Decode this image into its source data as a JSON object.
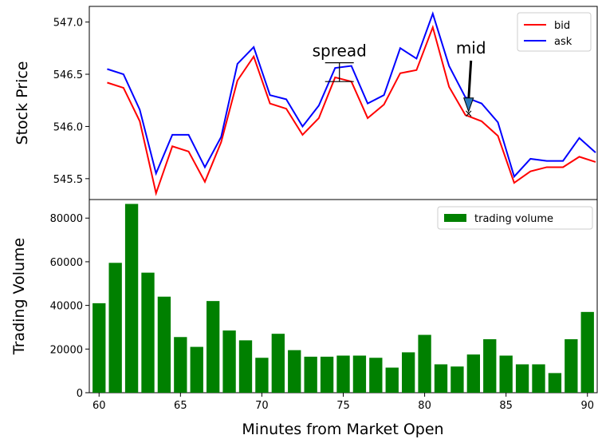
{
  "chart_data": [
    {
      "type": "line",
      "ylabel": "Stock Price",
      "ylim": [
        545.3,
        547.15
      ],
      "xlim": [
        59.4,
        90.6
      ],
      "yticks": [
        "545.5",
        "546.0",
        "546.5",
        "547.0"
      ],
      "yticks_values": [
        545.5,
        546.0,
        546.5,
        547.0
      ],
      "legend_position": "upper right",
      "grid": false,
      "x": [
        60.5,
        61.5,
        62.5,
        63.5,
        64.5,
        65.5,
        66.5,
        67.5,
        68.5,
        69.5,
        70.5,
        71.5,
        72.5,
        73.5,
        74.5,
        75.5,
        76.5,
        77.5,
        78.5,
        79.5,
        80.5,
        81.5,
        82.5,
        83.5,
        84.5,
        85.5,
        86.5,
        87.5,
        88.5,
        89.5,
        90.5
      ],
      "series": [
        {
          "name": "bid",
          "color": "#ff0000",
          "values": [
            546.42,
            546.37,
            546.05,
            545.36,
            545.81,
            545.76,
            545.47,
            545.85,
            546.44,
            546.67,
            546.22,
            546.17,
            545.92,
            546.08,
            546.47,
            546.43,
            546.08,
            546.21,
            546.51,
            546.54,
            546.95,
            546.38,
            546.11,
            546.05,
            545.91,
            545.46,
            545.57,
            545.61,
            545.61,
            545.71,
            545.66
          ]
        },
        {
          "name": "ask",
          "color": "#0000ff",
          "values": [
            546.55,
            546.5,
            546.16,
            545.55,
            545.92,
            545.92,
            545.61,
            545.9,
            546.6,
            546.76,
            546.3,
            546.26,
            546.0,
            546.2,
            546.56,
            546.58,
            546.22,
            546.3,
            546.75,
            546.65,
            547.08,
            546.58,
            546.28,
            546.22,
            546.04,
            545.52,
            545.69,
            545.67,
            545.67,
            545.89,
            545.75
          ]
        }
      ],
      "annotations": [
        {
          "text": "spread",
          "x": 75.5,
          "y_low": 546.43,
          "y_high": 546.61
        },
        {
          "text": "mid",
          "x": 82.7,
          "y": 546.12,
          "marker": "×"
        }
      ]
    },
    {
      "type": "bar",
      "xlabel": "Minutes from Market Open",
      "ylabel": "Trading Volume",
      "ylim": [
        0,
        88500
      ],
      "xlim": [
        59.4,
        90.6
      ],
      "yticks": [
        "0",
        "20000",
        "40000",
        "60000",
        "80000"
      ],
      "yticks_values": [
        0,
        20000,
        40000,
        60000,
        80000
      ],
      "xticks": [
        "60",
        "65",
        "70",
        "75",
        "80",
        "85",
        "90"
      ],
      "xticks_values": [
        60,
        65,
        70,
        75,
        80,
        85,
        90
      ],
      "legend_position": "upper right",
      "grid": false,
      "series": [
        {
          "name": "trading volume",
          "color": "#008000",
          "x": [
            60,
            61,
            62,
            63,
            64,
            65,
            66,
            67,
            68,
            69,
            70,
            71,
            72,
            73,
            74,
            75,
            76,
            77,
            78,
            79,
            80,
            81,
            82,
            83,
            84,
            85,
            86,
            87,
            88,
            89,
            90
          ],
          "values": [
            41000,
            59500,
            86500,
            55000,
            44000,
            25500,
            21000,
            42000,
            28500,
            24000,
            16000,
            27000,
            19500,
            16500,
            16500,
            17000,
            17000,
            16000,
            11500,
            18500,
            26500,
            13000,
            12000,
            17500,
            24500,
            17000,
            13000,
            13000,
            9000,
            24500,
            37000
          ]
        }
      ]
    }
  ]
}
